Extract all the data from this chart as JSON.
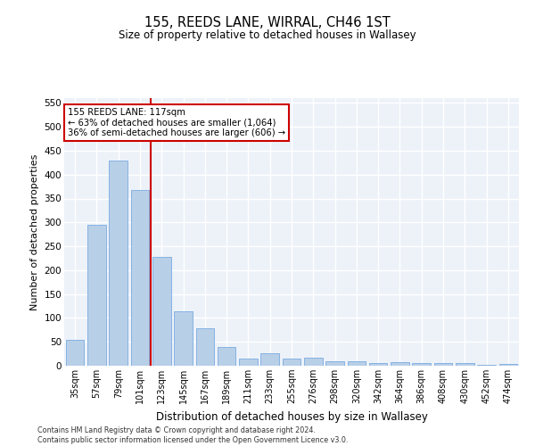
{
  "title_line1": "155, REEDS LANE, WIRRAL, CH46 1ST",
  "title_line2": "Size of property relative to detached houses in Wallasey",
  "xlabel": "Distribution of detached houses by size in Wallasey",
  "ylabel": "Number of detached properties",
  "categories": [
    "35sqm",
    "57sqm",
    "79sqm",
    "101sqm",
    "123sqm",
    "145sqm",
    "167sqm",
    "189sqm",
    "211sqm",
    "233sqm",
    "255sqm",
    "276sqm",
    "298sqm",
    "320sqm",
    "342sqm",
    "364sqm",
    "386sqm",
    "408sqm",
    "430sqm",
    "452sqm",
    "474sqm"
  ],
  "values": [
    55,
    295,
    430,
    368,
    227,
    113,
    78,
    40,
    15,
    27,
    15,
    16,
    9,
    10,
    6,
    8,
    5,
    5,
    5,
    2,
    4
  ],
  "bar_color": "#b8cfe8",
  "bar_edge_color": "#7aabe0",
  "vline_index": 3,
  "annotation_title": "155 REEDS LANE: 117sqm",
  "annotation_line2": "← 63% of detached houses are smaller (1,064)",
  "annotation_line3": "36% of semi-detached houses are larger (606) →",
  "annotation_box_color": "#cc0000",
  "vline_color": "#cc0000",
  "ylim": [
    0,
    560
  ],
  "yticks": [
    0,
    50,
    100,
    150,
    200,
    250,
    300,
    350,
    400,
    450,
    500,
    550
  ],
  "background_color": "#edf2f9",
  "grid_color": "#ffffff",
  "footer_line1": "Contains HM Land Registry data © Crown copyright and database right 2024.",
  "footer_line2": "Contains public sector information licensed under the Open Government Licence v3.0."
}
